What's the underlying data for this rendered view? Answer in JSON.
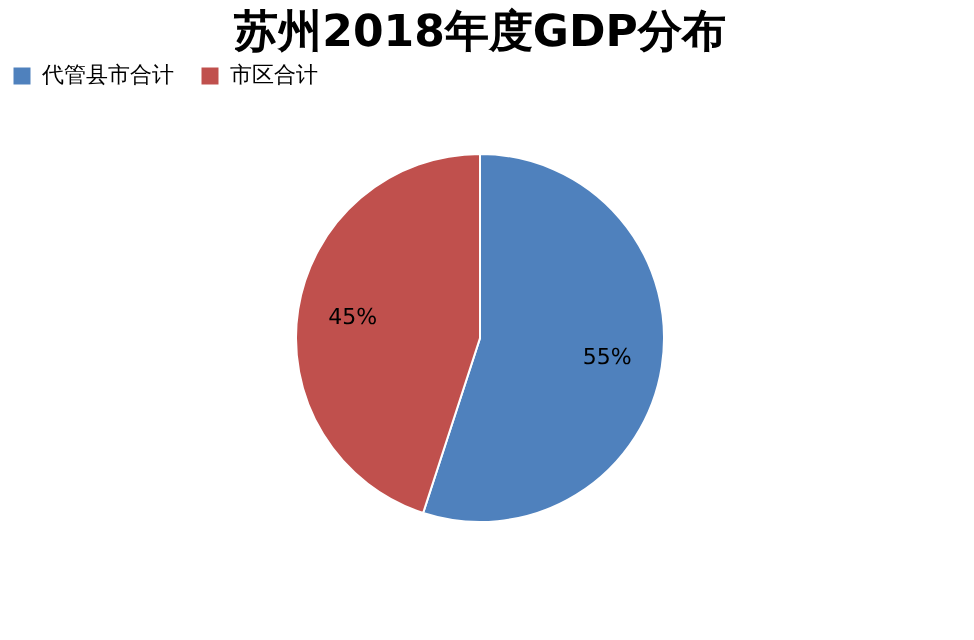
{
  "chart_data": {
    "type": "pie",
    "title": "苏州2018年度GDP分布",
    "categories": [
      "代管县市合计",
      "市区合计"
    ],
    "values": [
      55,
      45
    ],
    "colors": [
      "#4f81bd",
      "#c0504d"
    ],
    "value_labels": [
      "55%",
      "45%"
    ],
    "legend": "top"
  }
}
